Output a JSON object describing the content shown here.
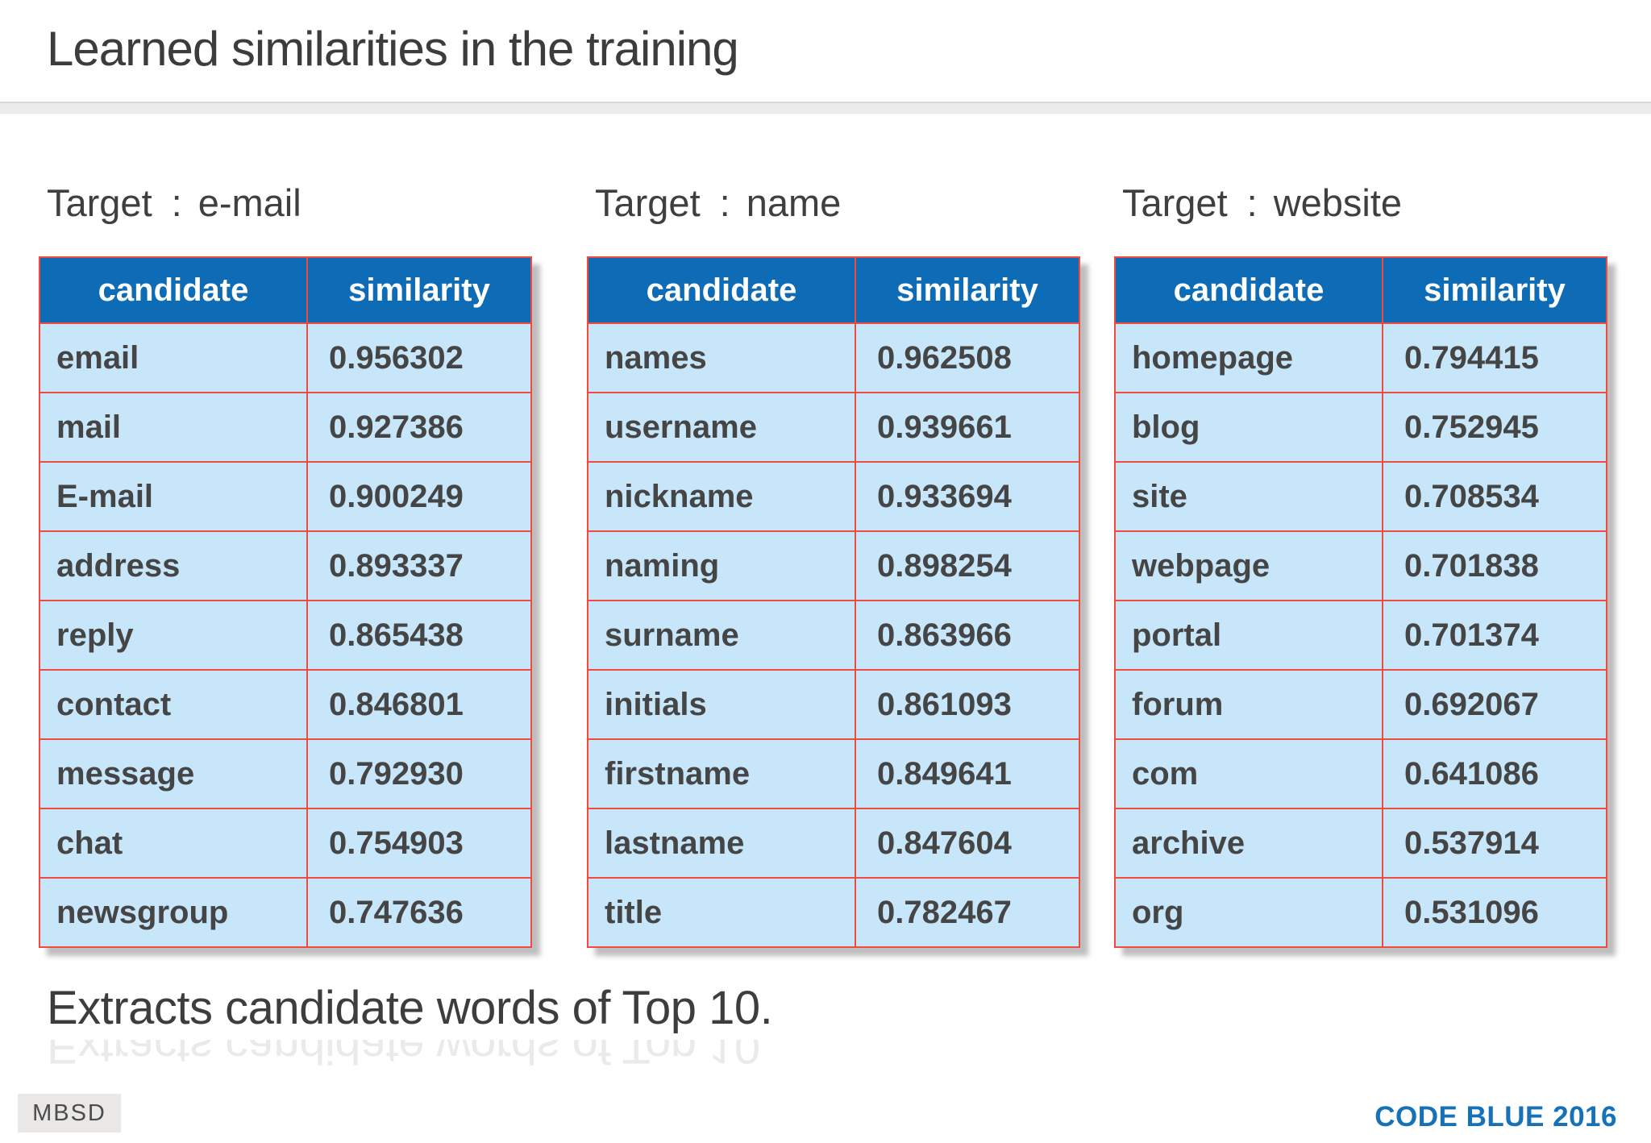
{
  "slide": {
    "title": "Learned similarities in the training",
    "caption": "Extracts candidate words of Top 10.",
    "footer": {
      "logo_text": "MBSD",
      "conference_text": "CODE BLUE 2016"
    }
  },
  "colors": {
    "header_blue": "#0d6cb5",
    "cell_blue": "#c8e6fa",
    "border_red": "#f04a41",
    "body_text_gray": "#454545",
    "title_gray": "#3c3c3c",
    "codeblue_blue": "#1571b8"
  },
  "tables": [
    {
      "target_label": "Target",
      "colon": ":",
      "target": "e-mail",
      "columns": [
        "candidate",
        "similarity"
      ],
      "rows": [
        [
          "email",
          "0.956302"
        ],
        [
          "mail",
          "0.927386"
        ],
        [
          "E-mail",
          "0.900249"
        ],
        [
          "address",
          "0.893337"
        ],
        [
          "reply",
          "0.865438"
        ],
        [
          "contact",
          "0.846801"
        ],
        [
          "message",
          "0.792930"
        ],
        [
          "chat",
          "0.754903"
        ],
        [
          "newsgroup",
          "0.747636"
        ]
      ]
    },
    {
      "target_label": "Target",
      "colon": ":",
      "target": "name",
      "columns": [
        "candidate",
        "similarity"
      ],
      "rows": [
        [
          "names",
          "0.962508"
        ],
        [
          "username",
          "0.939661"
        ],
        [
          "nickname",
          "0.933694"
        ],
        [
          "naming",
          "0.898254"
        ],
        [
          "surname",
          "0.863966"
        ],
        [
          "initials",
          "0.861093"
        ],
        [
          "firstname",
          "0.849641"
        ],
        [
          "lastname",
          "0.847604"
        ],
        [
          "title",
          "0.782467"
        ]
      ]
    },
    {
      "target_label": "Target",
      "colon": ":",
      "target": "website",
      "columns": [
        "candidate",
        "similarity"
      ],
      "rows": [
        [
          "homepage",
          "0.794415"
        ],
        [
          "blog",
          "0.752945"
        ],
        [
          "site",
          "0.708534"
        ],
        [
          "webpage",
          "0.701838"
        ],
        [
          "portal",
          "0.701374"
        ],
        [
          "forum",
          "0.692067"
        ],
        [
          "com",
          "0.641086"
        ],
        [
          "archive",
          "0.537914"
        ],
        [
          "org",
          "0.531096"
        ]
      ]
    }
  ]
}
